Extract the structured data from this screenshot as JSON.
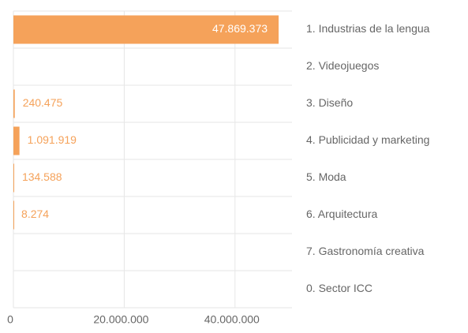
{
  "chart_data": {
    "type": "hbar",
    "categories": [
      "1. Industrias de la lengua",
      "2. Videojuegos",
      "3. Diseño",
      "4. Publicidad y marketing",
      "5. Moda",
      "6. Arquitectura",
      "7. Gastronomía creativa",
      "0. Sector ICC"
    ],
    "values": [
      47869373,
      null,
      240475,
      1091919,
      134588,
      8274,
      null,
      null
    ],
    "value_labels": [
      "47.869.373",
      null,
      "240.475",
      "1.091.919",
      "134.588",
      "8.274",
      null,
      null
    ],
    "color": "#f5a25a",
    "xlim": [
      0,
      50000000
    ],
    "xticks": [
      0,
      {
        "value": 20000000,
        "label": "20.000.000"
      },
      {
        "value": 40000000,
        "label": "40.000.000"
      }
    ],
    "grid": true
  }
}
